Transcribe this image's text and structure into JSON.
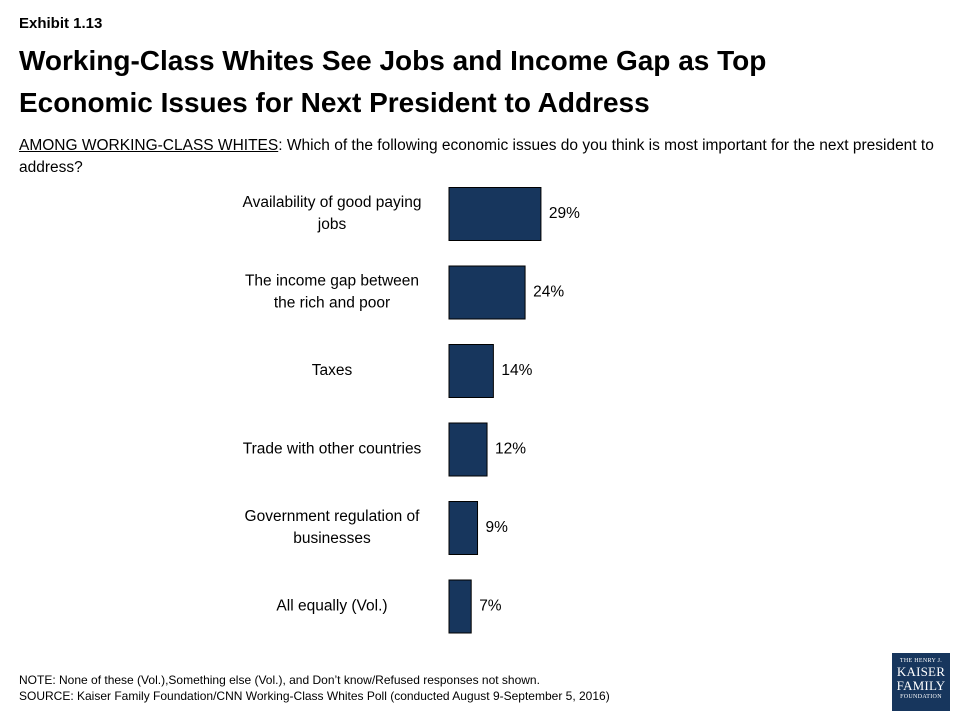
{
  "exhibit": "Exhibit 1.13",
  "title_line1": "Working-Class Whites See Jobs and Income Gap as Top",
  "title_line2": "Economic Issues for Next President to Address",
  "question_lead": "AMONG WORKING-CLASS WHITES",
  "question_text": ": Which of the following economic issues do you think is most important for the next president to address?",
  "chart_data": {
    "type": "bar",
    "orientation": "horizontal",
    "categories": [
      [
        "Availability of good paying",
        "jobs"
      ],
      [
        "The income gap between",
        "the rich and poor"
      ],
      [
        "Taxes"
      ],
      [
        "Trade with other countries"
      ],
      [
        "Government regulation of",
        "businesses"
      ],
      [
        "All equally (Vol.)"
      ]
    ],
    "values": [
      29,
      24,
      14,
      12,
      9,
      7
    ],
    "value_labels": [
      "29%",
      "24%",
      "14%",
      "12%",
      "9%",
      "7%"
    ],
    "bar_color": "#17365d",
    "grid": false,
    "legend": "none"
  },
  "note": "NOTE: None of these (Vol.),Something else (Vol.), and Don’t know/Refused responses not shown.",
  "source": "SOURCE: Kaiser Family Foundation/CNN Working-Class Whites Poll (conducted August 9-September 5, 2016)",
  "logo": {
    "line1": "THE HENRY J.",
    "line2": "KAISER",
    "line3": "FAMILY",
    "line4": "FOUNDATION"
  }
}
